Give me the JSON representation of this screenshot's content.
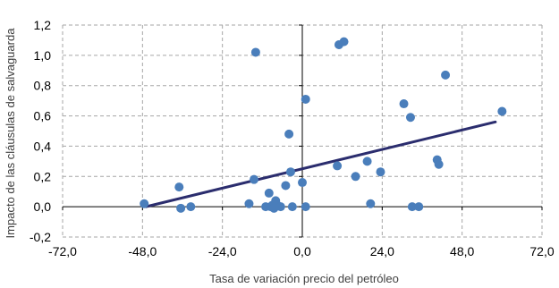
{
  "chart_data": {
    "type": "scatter",
    "title": "",
    "xlabel": "Tasa de variación precio del petróleo",
    "ylabel": "Impacto de las cláusulas de salvaguarda",
    "xlim": [
      -72,
      72
    ],
    "ylim": [
      -0.2,
      1.2
    ],
    "x_ticks": [
      -72,
      -48,
      -24,
      0,
      24,
      48,
      72
    ],
    "x_tick_labels": [
      "-72,0",
      "-48,0",
      "-24,0",
      "0,0",
      "24,0",
      "48,0",
      "72,0"
    ],
    "y_ticks": [
      -0.2,
      0,
      0.2,
      0.4,
      0.6,
      0.8,
      1.0,
      1.2
    ],
    "y_tick_labels": [
      "-0,2",
      "0,0",
      "0,2",
      "0,4",
      "0,6",
      "0,8",
      "1,0",
      "1,2"
    ],
    "grid": "vertical and horizontal dashed",
    "legend": "none",
    "colors": {
      "points": "#4a7ebb",
      "trendline": "#2b2d6e",
      "grid": "#a6a6a6",
      "axis": "#000000"
    },
    "series": [
      {
        "points": [
          {
            "x": -47.5,
            "y": 0.02
          },
          {
            "x": -37.0,
            "y": 0.13
          },
          {
            "x": -36.5,
            "y": -0.01
          },
          {
            "x": -33.5,
            "y": 0.0
          },
          {
            "x": -16.0,
            "y": 0.02
          },
          {
            "x": -14.5,
            "y": 0.18
          },
          {
            "x": -14.0,
            "y": 1.02
          },
          {
            "x": -11.0,
            "y": 0.0
          },
          {
            "x": -10.0,
            "y": 0.09
          },
          {
            "x": -9.5,
            "y": 0.0
          },
          {
            "x": -9.0,
            "y": 0.01
          },
          {
            "x": -8.5,
            "y": -0.01
          },
          {
            "x": -8.0,
            "y": 0.04
          },
          {
            "x": -7.5,
            "y": 0.01
          },
          {
            "x": -6.5,
            "y": 0.0
          },
          {
            "x": -5.0,
            "y": 0.14
          },
          {
            "x": -4.0,
            "y": 0.48
          },
          {
            "x": -3.5,
            "y": 0.23
          },
          {
            "x": -3.0,
            "y": 0.0
          },
          {
            "x": 0.0,
            "y": 0.16
          },
          {
            "x": 1.0,
            "y": 0.71
          },
          {
            "x": 1.0,
            "y": 0.0
          },
          {
            "x": 10.5,
            "y": 0.27
          },
          {
            "x": 11.0,
            "y": 1.07
          },
          {
            "x": 12.5,
            "y": 1.09
          },
          {
            "x": 16.0,
            "y": 0.2
          },
          {
            "x": 19.5,
            "y": 0.3
          },
          {
            "x": 20.5,
            "y": 0.02
          },
          {
            "x": 23.5,
            "y": 0.23
          },
          {
            "x": 30.5,
            "y": 0.68
          },
          {
            "x": 32.5,
            "y": 0.59
          },
          {
            "x": 33.0,
            "y": 0.0
          },
          {
            "x": 35.0,
            "y": 0.0
          },
          {
            "x": 40.5,
            "y": 0.31
          },
          {
            "x": 41.0,
            "y": 0.28
          },
          {
            "x": 43.0,
            "y": 0.87
          },
          {
            "x": 60.0,
            "y": 0.63
          }
        ]
      }
    ],
    "trendline": {
      "x": [
        -47.0,
        58.0
      ],
      "y": [
        0.0,
        0.56
      ]
    }
  }
}
